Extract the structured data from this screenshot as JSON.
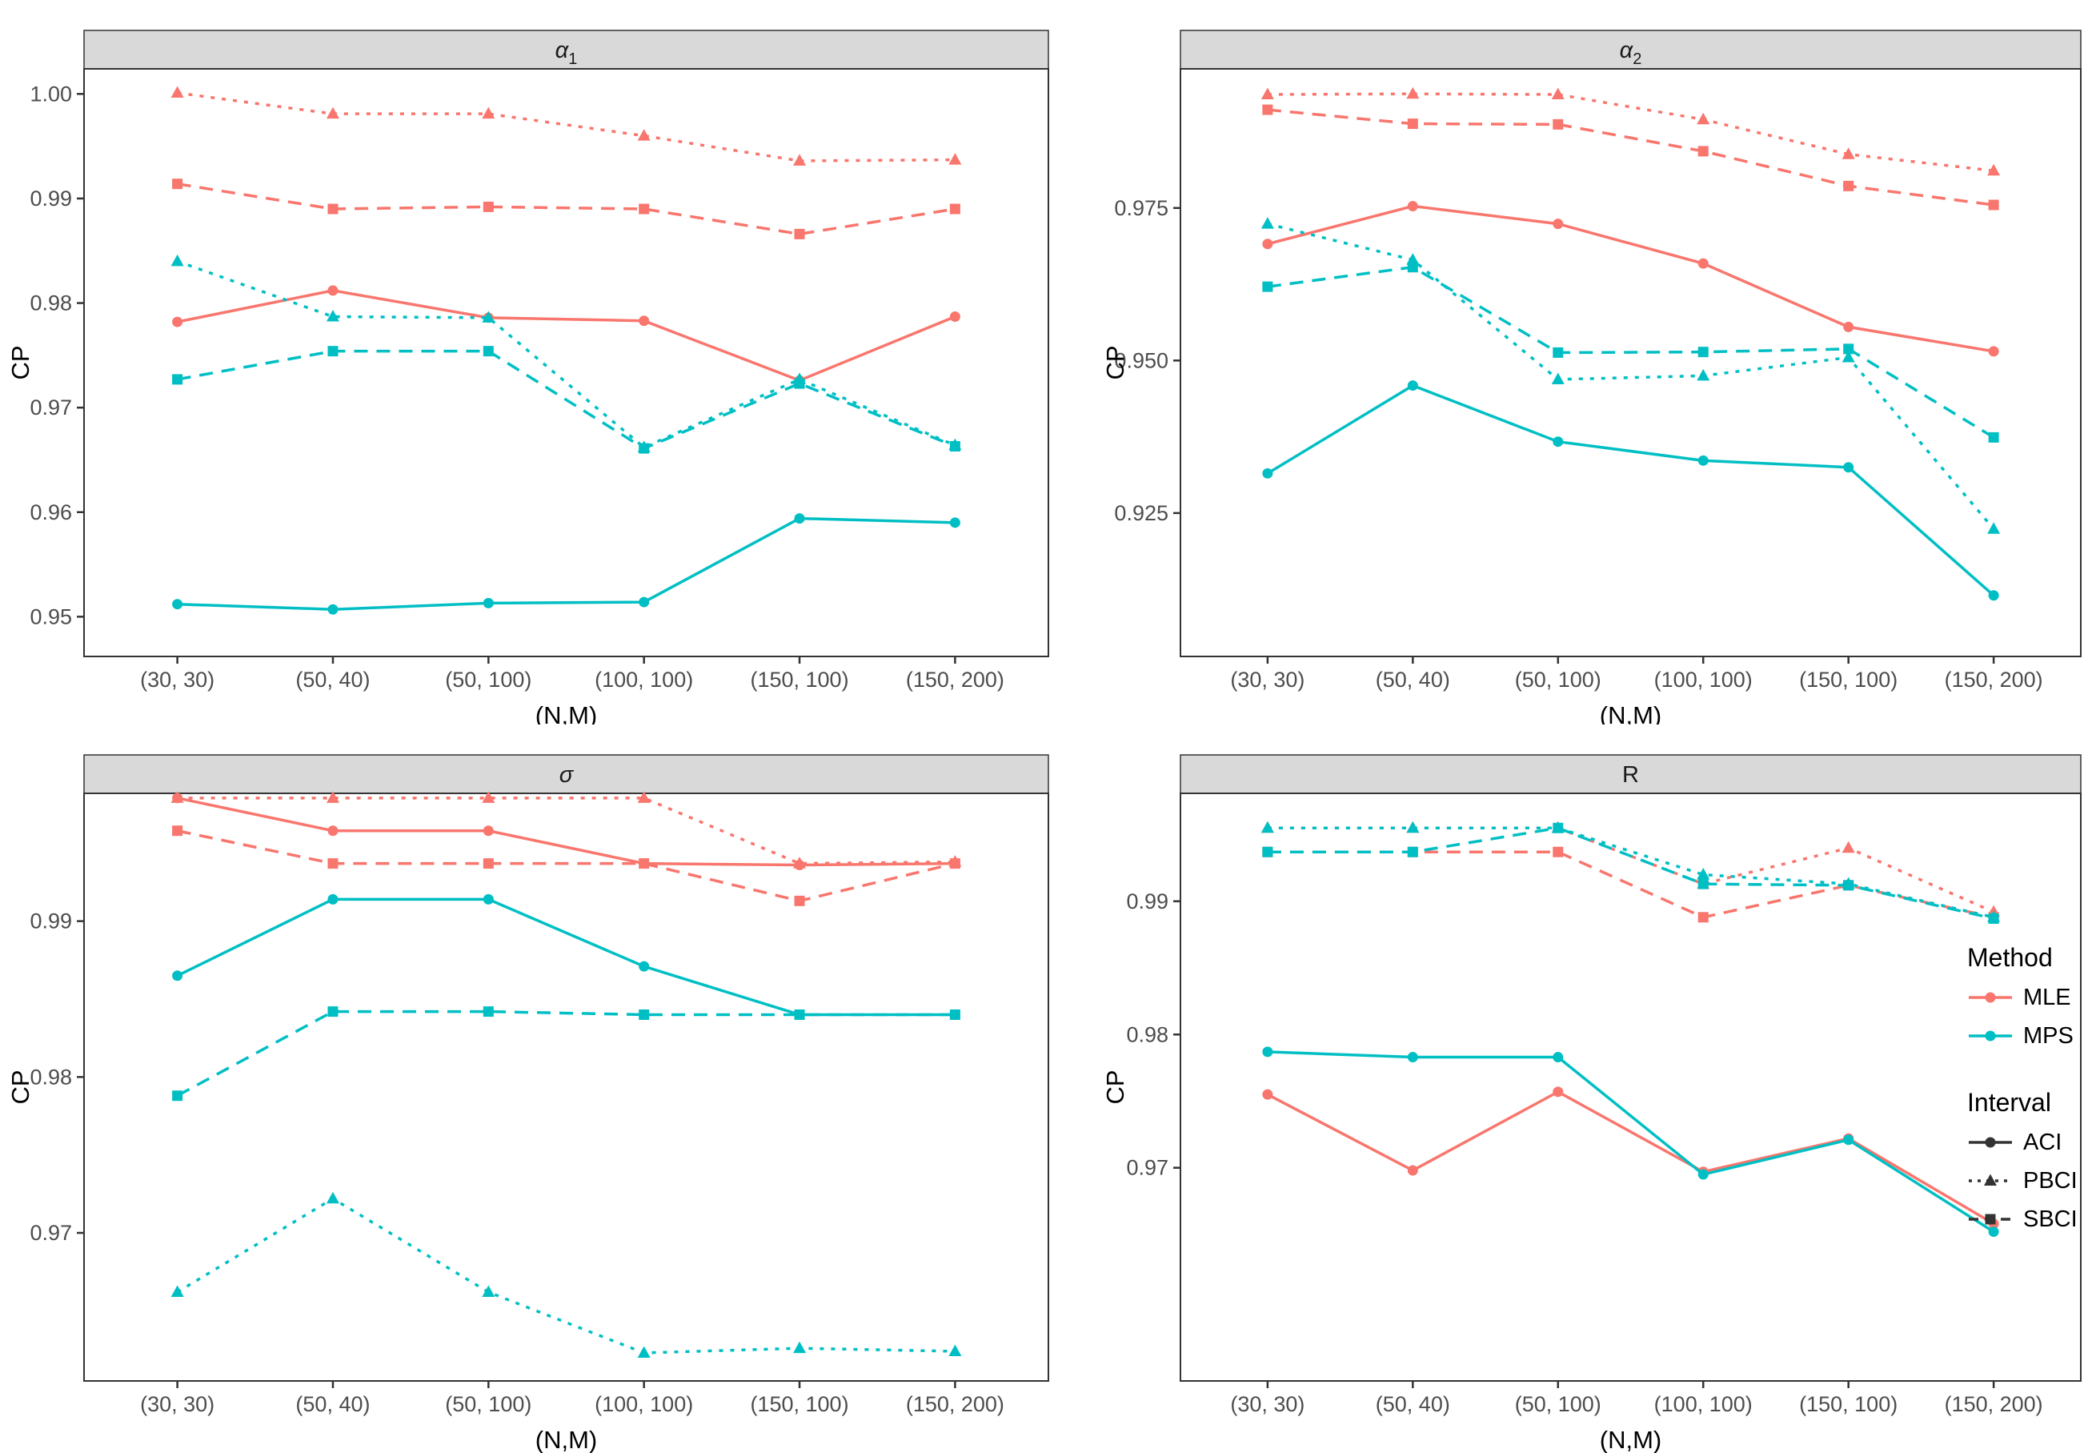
{
  "figure": {
    "y_axis_title": "CP",
    "x_axis_title": "(N,M)"
  },
  "colors": {
    "mle": "#F8766D",
    "mps": "#00BFC4",
    "strip_bg": "#D9D9D9",
    "panel_border": "#333333",
    "tick_text": "#4D4D4D",
    "legend_key": "#333333"
  },
  "legend": {
    "method_title": "Method",
    "methods": [
      {
        "label": "MLE",
        "color": "#F8766D"
      },
      {
        "label": "MPS",
        "color": "#00BFC4"
      }
    ],
    "interval_title": "Interval",
    "intervals": [
      {
        "label": "ACI",
        "line": "solid",
        "marker": "circle"
      },
      {
        "label": "PBCI",
        "line": "dotted",
        "marker": "triangle"
      },
      {
        "label": "SBCI",
        "line": "dashed",
        "marker": "square"
      }
    ]
  },
  "chart_data": [
    {
      "type": "line",
      "title": "α",
      "title_sub": "1",
      "title_italic": true,
      "xlabel": "(N,M)",
      "ylabel": "CP",
      "categories": [
        "(30, 30)",
        "(50, 40)",
        "(50, 100)",
        "(100, 100)",
        "(150, 100)",
        "(150, 200)"
      ],
      "ylim": [
        0.9462,
        1.0024
      ],
      "yticks": [
        {
          "value": 1.0,
          "label": "1.00"
        },
        {
          "value": 0.99,
          "label": "0.99"
        },
        {
          "value": 0.98,
          "label": "0.98"
        },
        {
          "value": 0.97,
          "label": "0.97"
        },
        {
          "value": 0.96,
          "label": "0.96"
        },
        {
          "value": 0.95,
          "label": "0.95"
        }
      ],
      "grid": false,
      "series": [
        {
          "method": "MLE",
          "interval": "ACI",
          "values": [
            0.9782,
            0.9812,
            0.9786,
            0.9783,
            0.9726,
            0.9787
          ]
        },
        {
          "method": "MLE",
          "interval": "PBCI",
          "values": [
            1.0001,
            0.9981,
            0.9981,
            0.996,
            0.9936,
            0.9937
          ]
        },
        {
          "method": "MLE",
          "interval": "SBCI",
          "values": [
            0.9914,
            0.989,
            0.9892,
            0.989,
            0.9866,
            0.989
          ]
        },
        {
          "method": "MPS",
          "interval": "ACI",
          "values": [
            0.9512,
            0.9507,
            0.9513,
            0.9514,
            0.9594,
            0.959
          ]
        },
        {
          "method": "MPS",
          "interval": "PBCI",
          "values": [
            0.984,
            0.9787,
            0.9786,
            0.9662,
            0.9727,
            0.9664
          ]
        },
        {
          "method": "MPS",
          "interval": "SBCI",
          "values": [
            0.9727,
            0.9754,
            0.9754,
            0.9661,
            0.9723,
            0.9663
          ]
        }
      ]
    },
    {
      "type": "line",
      "title": "α",
      "title_sub": "2",
      "title_italic": true,
      "xlabel": "(N,M)",
      "ylabel": "CP",
      "categories": [
        "(30, 30)",
        "(50, 40)",
        "(50, 100)",
        "(100, 100)",
        "(150, 100)",
        "(150, 200)"
      ],
      "ylim": [
        0.9015,
        0.9978
      ],
      "yticks": [
        {
          "value": 0.975,
          "label": "0.975"
        },
        {
          "value": 0.95,
          "label": "0.950"
        },
        {
          "value": 0.925,
          "label": "0.925"
        }
      ],
      "grid": false,
      "series": [
        {
          "method": "MLE",
          "interval": "ACI",
          "values": [
            0.9691,
            0.9753,
            0.9724,
            0.9659,
            0.9555,
            0.9515
          ]
        },
        {
          "method": "MLE",
          "interval": "PBCI",
          "values": [
            0.9936,
            0.9937,
            0.9936,
            0.9895,
            0.9838,
            0.9811
          ]
        },
        {
          "method": "MLE",
          "interval": "SBCI",
          "values": [
            0.9911,
            0.9888,
            0.9887,
            0.9843,
            0.9786,
            0.9755
          ]
        },
        {
          "method": "MPS",
          "interval": "ACI",
          "values": [
            0.9315,
            0.9459,
            0.9367,
            0.9336,
            0.9325,
            0.9115
          ]
        },
        {
          "method": "MPS",
          "interval": "PBCI",
          "values": [
            0.9724,
            0.9665,
            0.9469,
            0.9475,
            0.9505,
            0.9224
          ]
        },
        {
          "method": "MPS",
          "interval": "SBCI",
          "values": [
            0.9621,
            0.9653,
            0.9513,
            0.9514,
            0.9519,
            0.9374
          ]
        }
      ]
    },
    {
      "type": "line",
      "title": "σ",
      "title_sub": "",
      "title_italic": true,
      "xlabel": "(N,M)",
      "ylabel": "CP",
      "categories": [
        "(30, 30)",
        "(50, 40)",
        "(50, 100)",
        "(100, 100)",
        "(150, 100)",
        "(150, 200)"
      ],
      "ylim": [
        0.9605,
        0.9982
      ],
      "yticks": [
        {
          "value": 0.99,
          "label": "0.99"
        },
        {
          "value": 0.98,
          "label": "0.98"
        },
        {
          "value": 0.97,
          "label": "0.97"
        }
      ],
      "grid": false,
      "series": [
        {
          "method": "MLE",
          "interval": "ACI",
          "values": [
            0.9979,
            0.9958,
            0.9958,
            0.9937,
            0.9936,
            0.9937
          ]
        },
        {
          "method": "MLE",
          "interval": "PBCI",
          "values": [
            0.9979,
            0.9979,
            0.9979,
            0.9979,
            0.9937,
            0.9938
          ]
        },
        {
          "method": "MLE",
          "interval": "SBCI",
          "values": [
            0.9958,
            0.9937,
            0.9937,
            0.9937,
            0.9913,
            0.9937
          ]
        },
        {
          "method": "MPS",
          "interval": "ACI",
          "values": [
            0.9865,
            0.9914,
            0.9914,
            0.9871,
            0.984,
            0.984
          ]
        },
        {
          "method": "MPS",
          "interval": "PBCI",
          "values": [
            0.9662,
            0.9722,
            0.9662,
            0.9623,
            0.9626,
            0.9624
          ]
        },
        {
          "method": "MPS",
          "interval": "SBCI",
          "values": [
            0.9788,
            0.9842,
            0.9842,
            0.984,
            0.984,
            0.984
          ]
        }
      ]
    },
    {
      "type": "line",
      "title": "R",
      "title_sub": "",
      "title_italic": false,
      "xlabel": "(N,M)",
      "ylabel": "CP",
      "categories": [
        "(30, 30)",
        "(50, 40)",
        "(50, 100)",
        "(100, 100)",
        "(150, 100)",
        "(150, 200)"
      ],
      "ylim": [
        0.954,
        0.9981
      ],
      "yticks": [
        {
          "value": 0.99,
          "label": "0.99"
        },
        {
          "value": 0.98,
          "label": "0.98"
        },
        {
          "value": 0.97,
          "label": "0.97"
        }
      ],
      "grid": false,
      "series": [
        {
          "method": "MLE",
          "interval": "ACI",
          "values": [
            0.9755,
            0.9698,
            0.9757,
            0.9697,
            0.9722,
            0.9658
          ]
        },
        {
          "method": "MLE",
          "interval": "PBCI",
          "values": [
            0.9955,
            0.9955,
            0.9955,
            0.9913,
            0.994,
            0.9892
          ]
        },
        {
          "method": "MLE",
          "interval": "SBCI",
          "values": [
            0.9937,
            0.9937,
            0.9937,
            0.9888,
            0.9912,
            0.9888
          ]
        },
        {
          "method": "MPS",
          "interval": "ACI",
          "values": [
            0.9787,
            0.9783,
            0.9783,
            0.9695,
            0.9721,
            0.9652
          ]
        },
        {
          "method": "MPS",
          "interval": "PBCI",
          "values": [
            0.9955,
            0.9955,
            0.9955,
            0.992,
            0.9913,
            0.9888
          ]
        },
        {
          "method": "MPS",
          "interval": "SBCI",
          "values": [
            0.9937,
            0.9937,
            0.9955,
            0.9913,
            0.9912,
            0.9887
          ]
        }
      ]
    }
  ]
}
